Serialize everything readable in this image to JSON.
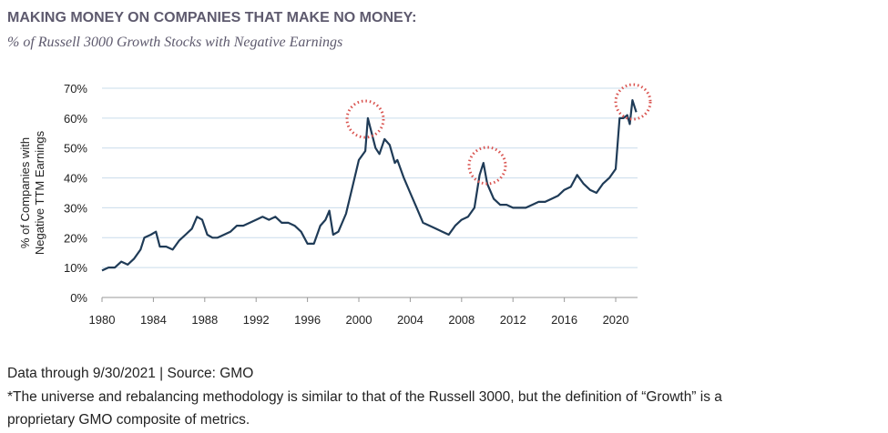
{
  "chart_data": {
    "type": "line",
    "title": "MAKING MONEY ON COMPANIES THAT MAKE NO MONEY:",
    "subtitle": "% of Russell 3000 Growth Stocks with Negative Earnings",
    "ylabel": [
      "% of Companies with",
      "Negative TTM Earnings"
    ],
    "x": [
      1980,
      1980.5,
      1981,
      1981.5,
      1982,
      1982.5,
      1983,
      1983.3,
      1983.8,
      1984.2,
      1984.5,
      1985,
      1985.5,
      1986,
      1986.5,
      1987,
      1987.4,
      1987.8,
      1988.2,
      1988.6,
      1989,
      1989.5,
      1990,
      1990.5,
      1991,
      1991.5,
      1992,
      1992.5,
      1993,
      1993.5,
      1994,
      1994.5,
      1995,
      1995.5,
      1996,
      1996.5,
      1997,
      1997.4,
      1997.7,
      1998,
      1998.4,
      1999,
      1999.5,
      2000,
      2000.5,
      2000.7,
      2001,
      2001.3,
      2001.6,
      2002,
      2002.4,
      2002.8,
      2003,
      2003.5,
      2004,
      2004.5,
      2005,
      2005.5,
      2006,
      2006.5,
      2007,
      2007.5,
      2008,
      2008.5,
      2009,
      2009.4,
      2009.7,
      2010,
      2010.5,
      2011,
      2011.5,
      2012,
      2012.5,
      2013,
      2013.5,
      2014,
      2014.5,
      2015,
      2015.5,
      2016,
      2016.5,
      2017,
      2017.5,
      2018,
      2018.5,
      2019,
      2019.5,
      2020,
      2020.3,
      2020.6,
      2020.9,
      2021.1,
      2021.3,
      2021.6
    ],
    "series": [
      {
        "name": "% of Russell 3000 Growth Stocks with Negative Earnings",
        "color": "#1f3b57",
        "values": [
          9,
          10,
          10,
          12,
          11,
          13,
          16,
          20,
          21,
          22,
          17,
          17,
          16,
          19,
          21,
          23,
          27,
          26,
          21,
          20,
          20,
          21,
          22,
          24,
          24,
          25,
          26,
          27,
          26,
          27,
          25,
          25,
          24,
          22,
          18,
          18,
          24,
          26,
          29,
          21,
          22,
          28,
          37,
          46,
          49,
          60,
          55,
          50,
          48,
          53,
          51,
          45,
          46,
          40,
          35,
          30,
          25,
          24,
          23,
          22,
          21,
          24,
          26,
          27,
          30,
          41,
          45,
          38,
          33,
          31,
          31,
          30,
          30,
          30,
          31,
          32,
          32,
          33,
          34,
          36,
          37,
          41,
          38,
          36,
          35,
          38,
          40,
          43,
          60,
          60,
          61,
          58,
          66,
          62
        ]
      }
    ],
    "xlim": [
      1980,
      2021.7
    ],
    "xticks": [
      1980,
      1984,
      1988,
      1992,
      1996,
      2000,
      2004,
      2008,
      2012,
      2016,
      2020
    ],
    "ylim": [
      0,
      70
    ],
    "yticks": [
      {
        "value": 0,
        "label": "0%"
      },
      {
        "value": 10,
        "label": "10%"
      },
      {
        "value": 20,
        "label": "20%"
      },
      {
        "value": 30,
        "label": "30%"
      },
      {
        "value": 40,
        "label": "40%"
      },
      {
        "value": 50,
        "label": "50%"
      },
      {
        "value": 60,
        "label": "60%"
      },
      {
        "value": 70,
        "label": "70%"
      }
    ],
    "grid": true
  },
  "footer": {
    "source": "Data through 9/30/2021 | Source: GMO",
    "note": [
      "*The universe and rebalancing methodology is similar to that of the Russell 3000, but the definition of “Growth” is a",
      "proprietary GMO composite of metrics."
    ]
  }
}
